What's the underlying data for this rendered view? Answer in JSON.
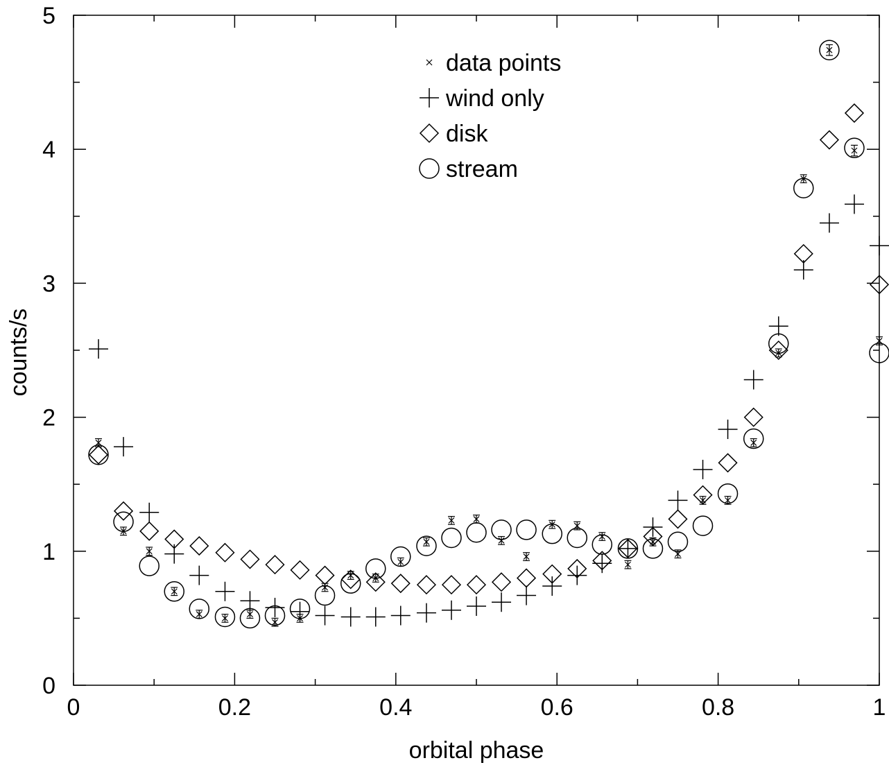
{
  "chart_data": {
    "type": "scatter",
    "xlabel": "orbital phase",
    "ylabel": "counts/s",
    "xlim": [
      0,
      1
    ],
    "ylim": [
      0,
      5
    ],
    "x_ticks": [
      0,
      0.2,
      0.4,
      0.6,
      0.8,
      1
    ],
    "x_tick_labels": [
      "0",
      "0.2",
      "0.4",
      "0.6",
      "0.8",
      "1"
    ],
    "y_ticks": [
      0,
      1,
      2,
      3,
      4,
      5
    ],
    "y_tick_labels": [
      "0",
      "1",
      "2",
      "3",
      "4",
      "5"
    ],
    "grid": false,
    "legend_position": "top-center",
    "series": [
      {
        "name": "data points",
        "marker": "x-with-errorbar",
        "x": [
          0.031,
          0.062,
          0.094,
          0.125,
          0.156,
          0.188,
          0.219,
          0.25,
          0.281,
          0.312,
          0.344,
          0.375,
          0.406,
          0.438,
          0.469,
          0.5,
          0.531,
          0.562,
          0.594,
          0.625,
          0.656,
          0.688,
          0.719,
          0.75,
          0.781,
          0.812,
          0.844,
          0.875,
          0.906,
          0.938,
          0.969,
          1.0
        ],
        "y": [
          1.81,
          1.15,
          1.0,
          0.7,
          0.53,
          0.5,
          0.53,
          0.47,
          0.5,
          0.73,
          0.82,
          0.8,
          0.92,
          1.07,
          1.23,
          1.24,
          1.08,
          0.96,
          1.2,
          1.19,
          1.11,
          0.9,
          1.07,
          0.98,
          1.38,
          1.38,
          1.81,
          2.48,
          3.78,
          4.74,
          3.99,
          2.57
        ],
        "yerr": [
          0.03,
          0.03,
          0.03,
          0.03,
          0.03,
          0.03,
          0.03,
          0.03,
          0.03,
          0.03,
          0.03,
          0.03,
          0.03,
          0.03,
          0.03,
          0.03,
          0.03,
          0.03,
          0.03,
          0.03,
          0.03,
          0.03,
          0.03,
          0.03,
          0.03,
          0.03,
          0.03,
          0.03,
          0.03,
          0.04,
          0.04,
          0.03
        ]
      },
      {
        "name": "wind only",
        "marker": "plus",
        "x": [
          0.031,
          0.062,
          0.094,
          0.125,
          0.156,
          0.188,
          0.219,
          0.25,
          0.281,
          0.312,
          0.344,
          0.375,
          0.406,
          0.438,
          0.469,
          0.5,
          0.531,
          0.562,
          0.594,
          0.625,
          0.656,
          0.688,
          0.719,
          0.75,
          0.781,
          0.812,
          0.844,
          0.875,
          0.906,
          0.938,
          0.969,
          1.0
        ],
        "y": [
          2.51,
          1.78,
          1.29,
          0.98,
          0.82,
          0.7,
          0.63,
          0.58,
          0.55,
          0.52,
          0.51,
          0.51,
          0.52,
          0.54,
          0.56,
          0.59,
          0.62,
          0.67,
          0.74,
          0.82,
          0.91,
          1.02,
          1.18,
          1.38,
          1.61,
          1.91,
          2.28,
          2.68,
          3.1,
          3.45,
          3.59,
          3.28
        ]
      },
      {
        "name": "disk",
        "marker": "diamond",
        "x": [
          0.031,
          0.062,
          0.094,
          0.125,
          0.156,
          0.188,
          0.219,
          0.25,
          0.281,
          0.312,
          0.344,
          0.375,
          0.406,
          0.438,
          0.469,
          0.5,
          0.531,
          0.562,
          0.594,
          0.625,
          0.656,
          0.688,
          0.719,
          0.75,
          0.781,
          0.812,
          0.844,
          0.875,
          0.906,
          0.938,
          0.969,
          1.0
        ],
        "y": [
          1.72,
          1.3,
          1.15,
          1.09,
          1.04,
          0.99,
          0.94,
          0.9,
          0.86,
          0.82,
          0.79,
          0.77,
          0.76,
          0.75,
          0.75,
          0.75,
          0.77,
          0.8,
          0.83,
          0.87,
          0.93,
          1.02,
          1.11,
          1.24,
          1.42,
          1.66,
          2.0,
          2.5,
          3.22,
          4.07,
          4.27,
          2.99
        ]
      },
      {
        "name": "stream",
        "marker": "circle",
        "x": [
          0.031,
          0.062,
          0.094,
          0.125,
          0.156,
          0.188,
          0.219,
          0.25,
          0.281,
          0.312,
          0.344,
          0.375,
          0.406,
          0.438,
          0.469,
          0.5,
          0.531,
          0.562,
          0.594,
          0.625,
          0.656,
          0.688,
          0.719,
          0.75,
          0.781,
          0.812,
          0.844,
          0.875,
          0.906,
          0.938,
          0.969,
          1.0
        ],
        "y": [
          1.72,
          1.22,
          0.89,
          0.7,
          0.57,
          0.51,
          0.5,
          0.52,
          0.57,
          0.67,
          0.76,
          0.87,
          0.96,
          1.04,
          1.1,
          1.14,
          1.16,
          1.16,
          1.13,
          1.1,
          1.05,
          1.02,
          1.02,
          1.07,
          1.19,
          1.43,
          1.84,
          2.55,
          3.71,
          4.74,
          4.01,
          2.48
        ]
      }
    ]
  }
}
